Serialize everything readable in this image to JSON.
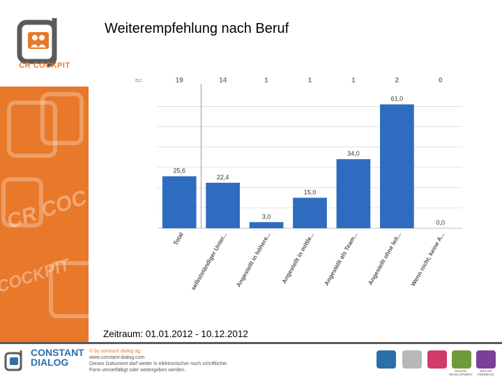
{
  "header": {
    "title": "Weiterempfehlung nach Beruf"
  },
  "brand": {
    "logo_text": "CR COCKPIT",
    "watermark_1": "CR COC",
    "watermark_2": "COCKPIT",
    "accent": "#e8782a",
    "dark": "#5a5a5a"
  },
  "chart_data": {
    "type": "bar",
    "n_label": "n=",
    "categories": [
      "Total",
      "selbstständiger Unter...",
      "Angestellt in höhere...",
      "Angestellt in mittle...",
      "Angestellt als Team...",
      "Angestellt ohne leit...",
      "Wenn nicht, keine A..."
    ],
    "n_values": [
      "19",
      "14",
      "1",
      "1",
      "1",
      "2",
      "0"
    ],
    "values": [
      25.6,
      22.4,
      3.0,
      15.0,
      34.0,
      61.0,
      0.0
    ],
    "value_labels": [
      "25,6",
      "22,4",
      "3,0",
      "15,0",
      "34,0",
      "61,0",
      "0,0"
    ],
    "bar_color": "#2e6cc0",
    "ylim": [
      0,
      65
    ],
    "grid": true
  },
  "footer": {
    "period": "Zeitraum: 01.01.2012 - 10.12.2012",
    "company_line1": "CONSTANT",
    "company_line2": "DIALOG",
    "copyright": "© by constant dialog ag",
    "website": "www.constant-dialog.com",
    "notice_line1": "Dieses Dokument darf weder in elektronischer noch schriftlicher",
    "notice_line2": "Form vervielfältigt oder weitergeben werden.",
    "products": [
      "",
      "",
      "",
      "DIALOG DEVELOPMENT",
      "DIALOG FEEDBACK"
    ]
  }
}
